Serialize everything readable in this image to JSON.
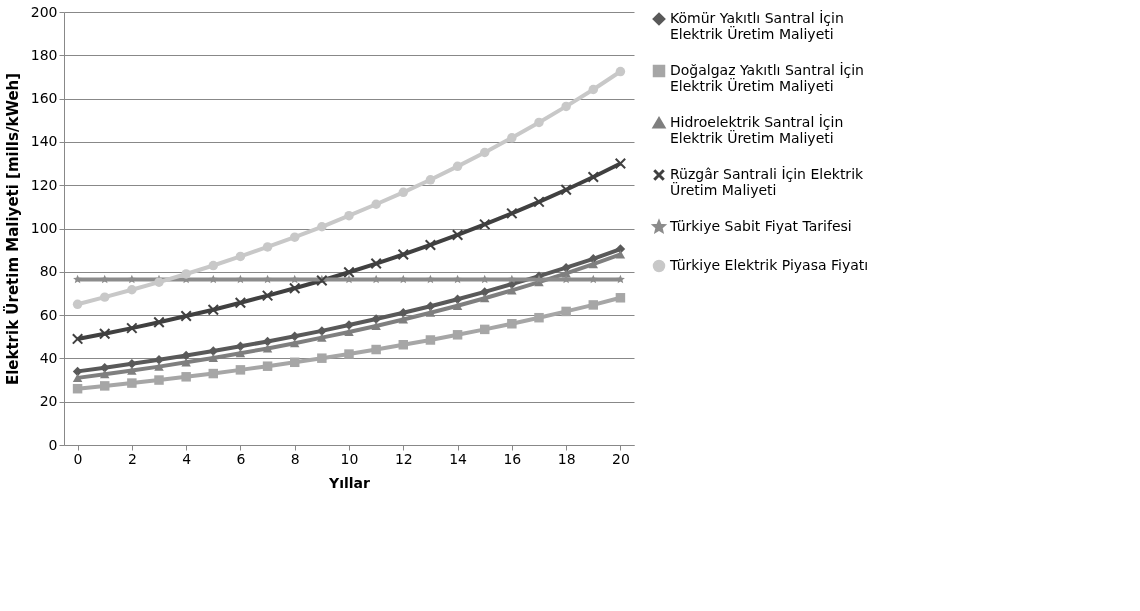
{
  "chart_data": {
    "type": "line",
    "xlabel": "Yıllar",
    "ylabel": "Elektrik Üretim Maliyeti [mills/kWeh]",
    "x": [
      0,
      1,
      2,
      3,
      4,
      5,
      6,
      7,
      8,
      9,
      10,
      11,
      12,
      13,
      14,
      15,
      16,
      17,
      18,
      19,
      20
    ],
    "xlim": [
      -0.5,
      20.5
    ],
    "xticks": [
      0,
      2,
      4,
      6,
      8,
      10,
      12,
      14,
      16,
      18,
      20
    ],
    "ylim": [
      0,
      200
    ],
    "yticks": [
      0,
      20,
      40,
      60,
      80,
      100,
      120,
      140,
      160,
      180,
      200
    ],
    "grid": "y",
    "legend": "right",
    "series": [
      {
        "name": "Kömür Yakıtlı Santral İçin Elektrik Üretim Maliyeti",
        "color": "#595959",
        "marker": "diamond",
        "values": [
          34,
          35.7,
          37.5,
          39.4,
          41.3,
          43.4,
          45.6,
          47.8,
          50.2,
          52.7,
          55.4,
          58.2,
          61.1,
          64.1,
          67.3,
          70.7,
          74.3,
          78,
          81.9,
          86,
          90.5
        ]
      },
      {
        "name": "Doğalgaz Yakıtlı Santral İçin Elektrik Üretim Maliyeti",
        "color": "#a6a6a6",
        "marker": "square",
        "values": [
          26,
          27.3,
          28.6,
          30,
          31.5,
          33,
          34.7,
          36.4,
          38.2,
          40.1,
          42,
          44.1,
          46.3,
          48.5,
          50.9,
          53.4,
          56,
          58.8,
          61.7,
          64.7,
          68
        ]
      },
      {
        "name": "Hidroelektrik Santral İçin Elektrik Üretim Maliyeti",
        "color": "#7f7f7f",
        "marker": "triangle",
        "values": [
          31,
          32.7,
          34.4,
          36.2,
          38.2,
          40.2,
          42.4,
          44.6,
          47,
          49.6,
          52.2,
          55,
          58,
          61.1,
          64.3,
          67.8,
          71.4,
          75.2,
          79.3,
          83.5,
          88
        ]
      },
      {
        "name": "Rüzgâr Santrali İçin Elektrik Üretim Maliyeti",
        "color": "#404040",
        "marker": "cross",
        "values": [
          49,
          51.4,
          54,
          56.7,
          59.6,
          62.5,
          65.7,
          69,
          72.4,
          76,
          79.8,
          83.8,
          88,
          92.4,
          97,
          101.9,
          107,
          112.3,
          117.9,
          123.8,
          130
        ]
      },
      {
        "name": "Türkiye Sabit Fiyat Tarifesi",
        "color": "#8c8c8c",
        "marker": "star",
        "values": [
          76.5,
          76.5,
          76.5,
          76.5,
          76.5,
          76.5,
          76.5,
          76.5,
          76.5,
          76.5,
          76.5,
          76.5,
          76.5,
          76.5,
          76.5,
          76.5,
          76.5,
          76.5,
          76.5,
          76.5,
          76.5
        ]
      },
      {
        "name": "Türkiye Elektrik Piyasa Fiyatı",
        "color": "#c8c8c8",
        "marker": "circle",
        "values": [
          65,
          68.3,
          71.7,
          75.2,
          79,
          82.9,
          87.1,
          91.5,
          96,
          100.8,
          105.9,
          111.2,
          116.7,
          122.5,
          128.7,
          135.1,
          141.9,
          149,
          156.4,
          164.2,
          172.5
        ]
      }
    ]
  }
}
